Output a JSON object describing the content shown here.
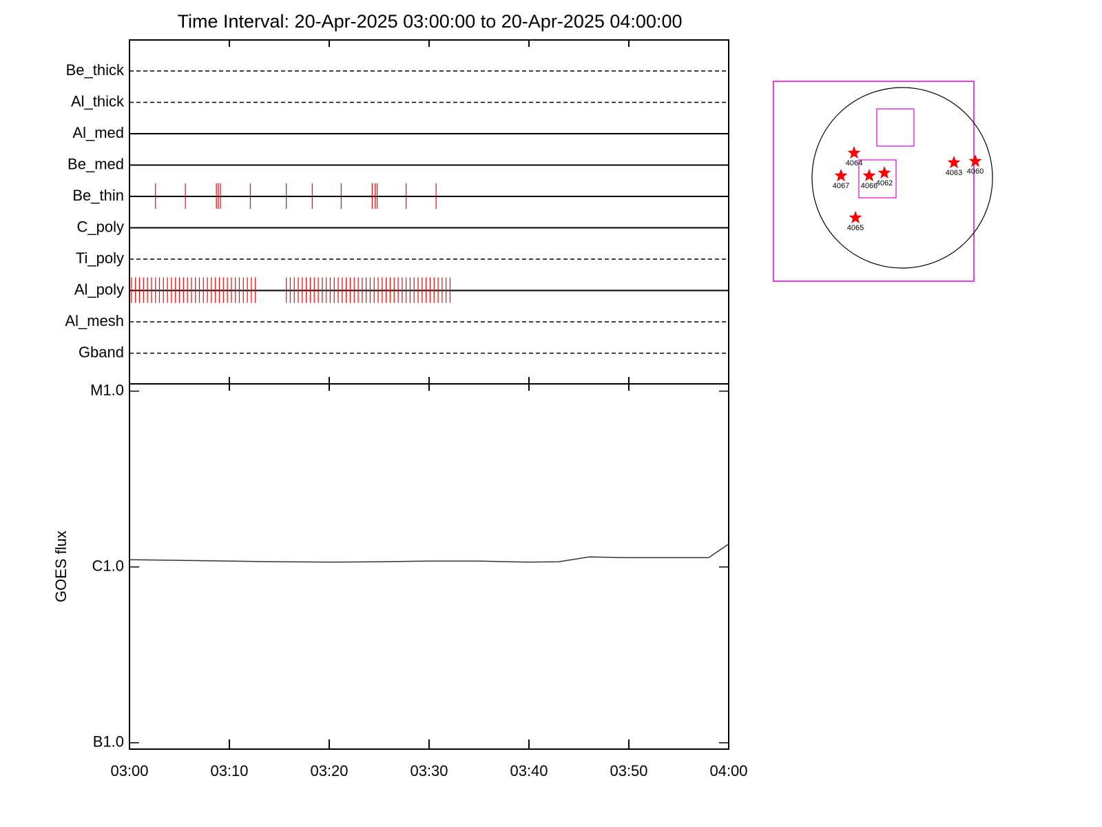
{
  "chart_data": [
    {
      "type": "timeline",
      "title": "Time Interval: 20-Apr-2025 03:00:00 to 20-Apr-2025 04:00:00",
      "categories": [
        "Be_thick",
        "Al_thick",
        "Al_med",
        "Be_med",
        "Be_thin",
        "C_poly",
        "Ti_poly",
        "Al_poly",
        "Al_mesh",
        "Gband"
      ],
      "line_styles": [
        "dashed",
        "dashed",
        "solid",
        "solid",
        "solid",
        "solid",
        "dashed",
        "solid",
        "dashed",
        "dashed"
      ],
      "color": "#ff0000",
      "events": [
        [],
        [],
        [],
        [],
        [
          2.6,
          5.6,
          8.7,
          8.9,
          9.1,
          12.1,
          15.7,
          18.3,
          21.2,
          24.3,
          24.6,
          24.8,
          27.7,
          30.7
        ],
        [],
        [],
        [
          0.2,
          0.6,
          1.0,
          1.4,
          1.8,
          2.2,
          2.6,
          3.0,
          3.4,
          3.8,
          4.2,
          4.6,
          5.0,
          5.4,
          5.8,
          6.2,
          6.6,
          7.0,
          7.4,
          7.8,
          8.2,
          8.6,
          9.0,
          9.4,
          9.8,
          10.2,
          10.6,
          11.0,
          11.4,
          11.8,
          12.2,
          12.6,
          15.7,
          16.1,
          16.5,
          16.9,
          17.3,
          17.7,
          18.1,
          18.5,
          18.9,
          19.3,
          19.7,
          20.1,
          20.5,
          20.9,
          21.3,
          21.7,
          22.1,
          22.5,
          22.9,
          23.3,
          23.7,
          24.1,
          24.5,
          24.9,
          25.3,
          25.7,
          26.1,
          26.5,
          26.9,
          27.3,
          27.7,
          28.1,
          28.5,
          28.9,
          29.3,
          29.7,
          30.1,
          30.5,
          30.9,
          31.3,
          31.7,
          32.1
        ],
        [],
        []
      ],
      "xlim": [
        0,
        60
      ],
      "xticks": [
        0,
        10,
        20,
        30,
        40,
        50,
        60
      ]
    },
    {
      "type": "line",
      "y_label": "GOES flux",
      "log_scale": true,
      "color": "#333333",
      "x": [
        0,
        5,
        10,
        15,
        20,
        25,
        30,
        35,
        40,
        43,
        46,
        50,
        55,
        58,
        60
      ],
      "values": [
        1.1e-06,
        1.09e-06,
        1.08e-06,
        1.07e-06,
        1.065e-06,
        1.07e-06,
        1.08e-06,
        1.08e-06,
        1.065e-06,
        1.07e-06,
        1.14e-06,
        1.13e-06,
        1.13e-06,
        1.13e-06,
        1.35e-06
      ],
      "xlim": [
        0,
        60
      ],
      "xticks": [
        {
          "value": 0,
          "label": "03:00"
        },
        {
          "value": 10,
          "label": "03:10"
        },
        {
          "value": 20,
          "label": "03:20"
        },
        {
          "value": 30,
          "label": "03:30"
        },
        {
          "value": 40,
          "label": "03:40"
        },
        {
          "value": 50,
          "label": "03:50"
        },
        {
          "value": 60,
          "label": "04:00"
        }
      ],
      "ylim": [
        9.2e-08,
        1.1e-05
      ],
      "yticks": [
        {
          "value": 1e-07,
          "label": "B1.0"
        },
        {
          "value": 1e-06,
          "label": "C1.0"
        },
        {
          "value": 1e-05,
          "label": "M1.0"
        }
      ]
    }
  ],
  "sun_map": {
    "regions": [
      "4064",
      "4067",
      "4066",
      "4062",
      "4063",
      "4060",
      "4065"
    ]
  }
}
